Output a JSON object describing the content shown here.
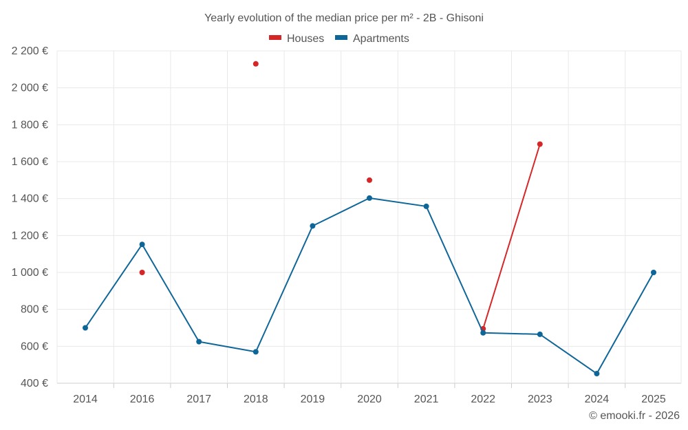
{
  "chart_data": {
    "type": "line",
    "title": "Yearly evolution of the median price per m² - 2B - Ghisoni",
    "xlabel": "",
    "ylabel": "",
    "categories": [
      "2014",
      "2016",
      "2017",
      "2018",
      "2019",
      "2020",
      "2021",
      "2022",
      "2023",
      "2024",
      "2025"
    ],
    "ylim": [
      400,
      2200
    ],
    "yticks": [
      400,
      600,
      800,
      1000,
      1200,
      1400,
      1600,
      1800,
      2000,
      2200
    ],
    "ytick_labels": [
      "400 €",
      "600 €",
      "800 €",
      "1 000 €",
      "1 200 €",
      "1 400 €",
      "1 600 €",
      "1 800 €",
      "2 000 €",
      "2 200 €"
    ],
    "grid": true,
    "legend_position": "top-center",
    "series": [
      {
        "name": "Houses",
        "color": "#d62728",
        "values": [
          null,
          1000,
          null,
          2130,
          null,
          1500,
          null,
          695,
          1695,
          null,
          null
        ]
      },
      {
        "name": "Apartments",
        "color": "#0e6698",
        "values": [
          700,
          1152,
          625,
          570,
          1252,
          1403,
          1358,
          673,
          665,
          452,
          1000
        ]
      }
    ]
  },
  "footer": {
    "text": "© emooki.fr - 2026"
  }
}
